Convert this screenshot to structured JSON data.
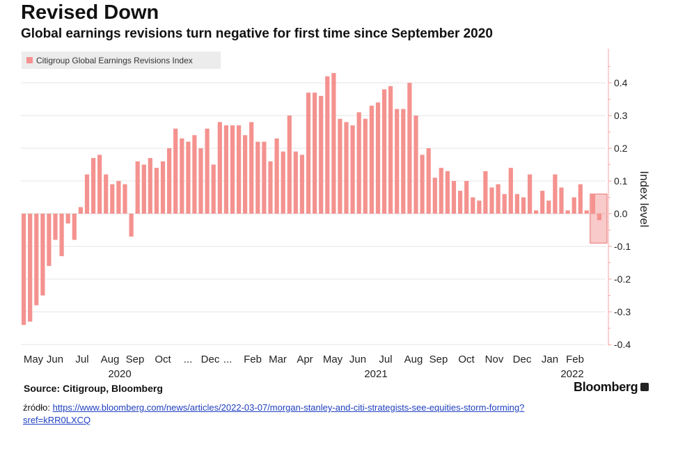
{
  "header": {
    "title": "Revised Down",
    "subtitle": "Global earnings revisions turn negative for first time since September 2020"
  },
  "footer": {
    "source": "Source: Citigroup, Bloomberg",
    "brand": "Bloomberg",
    "credit_prefix": "źródło: ",
    "credit_link": "https://www.bloomberg.com/news/articles/2022-03-07/morgan-stanley-and-citi-strategists-see-equities-storm-forming?sref=kRR0LXCQ"
  },
  "colors": {
    "bar": "#f4928f",
    "highlight": "#f28a8a",
    "axis_line": "#f7a3a3",
    "grid": "#e6e6e6"
  },
  "chart_data": {
    "type": "bar",
    "ylabel": "Index level",
    "ylim": [
      -0.4,
      0.45
    ],
    "yticks": [
      0.4,
      0.3,
      0.2,
      0.1,
      0.0,
      -0.1,
      -0.2,
      -0.3,
      -0.4
    ],
    "ytick_labels": [
      "0.4",
      "0.3",
      "0.2",
      "0.1",
      "0.0",
      "-0.1",
      "-0.2",
      "-0.3",
      "-0.4"
    ],
    "y_axis_position": "right",
    "grid": true,
    "legend_position": "top-left",
    "series": [
      {
        "name": "Citigroup Global Earnings Revisions Index",
        "values": [
          -0.34,
          -0.33,
          -0.28,
          -0.25,
          -0.16,
          -0.08,
          -0.13,
          -0.03,
          -0.08,
          0.02,
          0.12,
          0.17,
          0.18,
          0.12,
          0.09,
          0.1,
          0.09,
          -0.07,
          0.16,
          0.15,
          0.17,
          0.14,
          0.16,
          0.2,
          0.26,
          0.23,
          0.22,
          0.24,
          0.2,
          0.26,
          0.15,
          0.28,
          0.27,
          0.27,
          0.27,
          0.24,
          0.28,
          0.22,
          0.22,
          0.16,
          0.23,
          0.19,
          0.3,
          0.19,
          0.18,
          0.37,
          0.37,
          0.36,
          0.42,
          0.43,
          0.29,
          0.28,
          0.27,
          0.31,
          0.29,
          0.33,
          0.34,
          0.38,
          0.39,
          0.32,
          0.32,
          0.4,
          0.3,
          0.18,
          0.2,
          0.11,
          0.14,
          0.13,
          0.1,
          0.07,
          0.1,
          0.05,
          0.04,
          0.13,
          0.08,
          0.09,
          0.06,
          0.14,
          0.06,
          0.05,
          0.12,
          0.01,
          0.07,
          0.04,
          0.12,
          0.08,
          0.01,
          0.05,
          0.09,
          0.01,
          0.06,
          -0.02
        ]
      }
    ],
    "x_month_labels": [
      "May",
      "Jun",
      "Jul",
      "Aug",
      "Sep",
      "Oct",
      "...",
      "Dec",
      "...",
      "Feb",
      "Mar",
      "Apr",
      "May",
      "Jun",
      "Jul",
      "Aug",
      "Sep",
      "Oct",
      "Nov",
      "Dec",
      "Jan",
      "Feb"
    ],
    "x_year_labels": [
      "2020",
      "2021",
      "2022"
    ],
    "highlight": {
      "from_index": 90,
      "to_index": 91,
      "ylim": [
        -0.09,
        0.06
      ]
    }
  }
}
